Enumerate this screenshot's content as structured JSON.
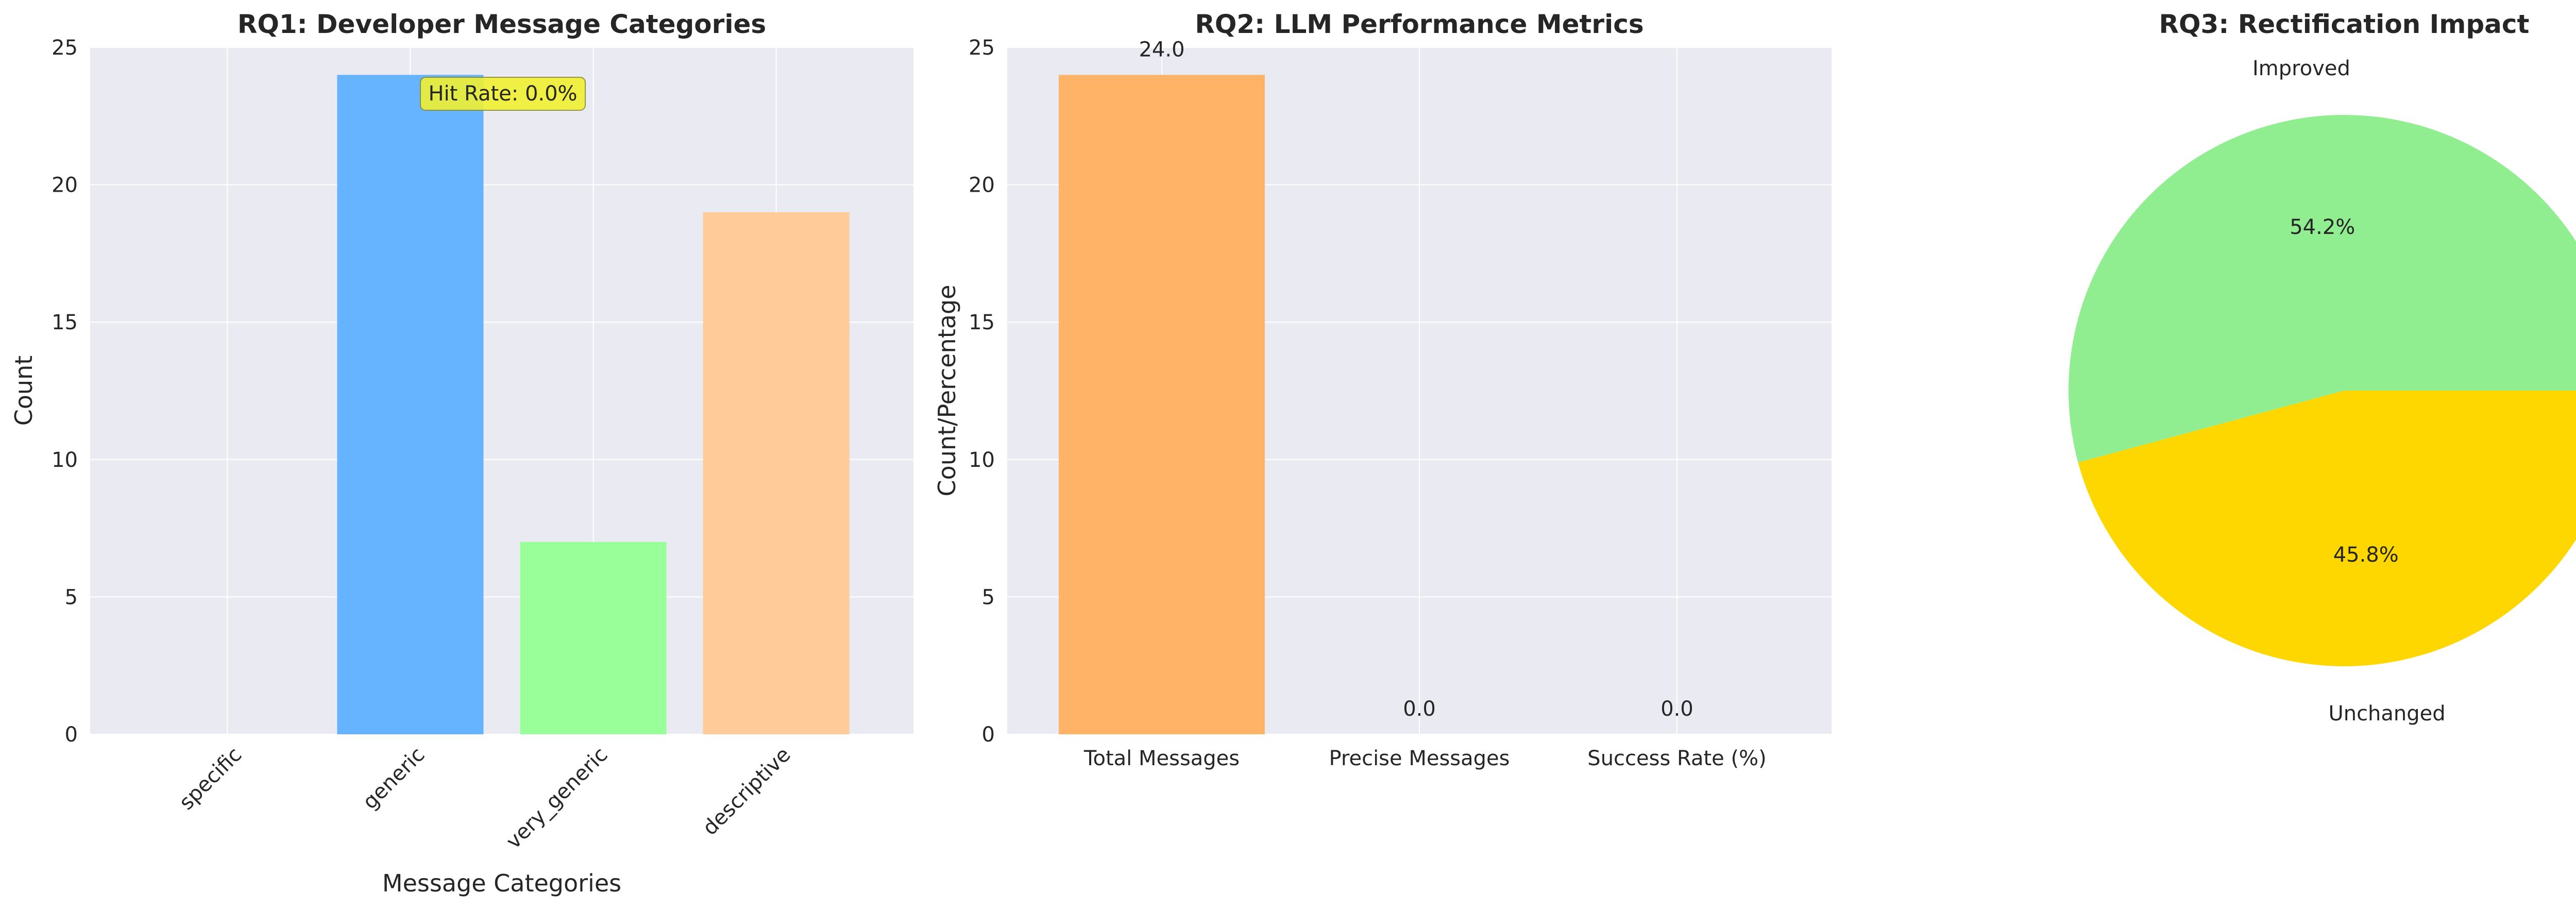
{
  "chart_data": [
    {
      "type": "bar",
      "title": "RQ1: Developer Message Categories",
      "xlabel": "Message Categories",
      "ylabel": "Count",
      "categories": [
        "specific",
        "generic",
        "very_generic",
        "descriptive"
      ],
      "values": [
        0,
        24,
        7,
        19
      ],
      "colors": [
        "#ff9999",
        "#66b3ff",
        "#99ff99",
        "#ffcc99"
      ],
      "ylim": [
        0,
        25
      ],
      "yticks": [
        0,
        5,
        10,
        15,
        20,
        25
      ],
      "grid": true,
      "annotation": "Hit Rate: 0.0%"
    },
    {
      "type": "bar",
      "title": "RQ2: LLM Performance Metrics",
      "xlabel": "",
      "ylabel": "Count/Percentage",
      "categories": [
        "Total Messages",
        "Precise Messages",
        "Success Rate (%)"
      ],
      "values": [
        24,
        0,
        0
      ],
      "value_labels": [
        "24.0",
        "0.0",
        "0.0"
      ],
      "colors": [
        "#ffb366",
        "#90ee90",
        "#ff6b6b"
      ],
      "ylim": [
        0,
        25
      ],
      "yticks": [
        0,
        5,
        10,
        15,
        20,
        25
      ],
      "grid": true
    },
    {
      "type": "pie",
      "title": "RQ3: Rectification Impact",
      "labels": [
        "Improved",
        "Unchanged"
      ],
      "values": [
        54.2,
        45.8
      ],
      "value_labels": [
        "54.2%",
        "45.8%"
      ],
      "colors": [
        "#90ee90",
        "#ffd700"
      ]
    }
  ]
}
